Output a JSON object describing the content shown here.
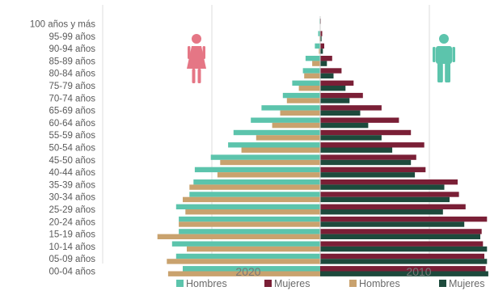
{
  "chart_data": {
    "type": "bar",
    "orientation": "horizontal",
    "layout": "population-pyramid",
    "categories": [
      "100 años y más",
      "95-99 años",
      "90-94 años",
      "85-89 años",
      "80-84 años",
      "75-79 años",
      "70-74 años",
      "65-69 años",
      "60-64 años",
      "55-59 años",
      "50-54 años",
      "45-50 años",
      "40-44 años",
      "35-39 años",
      "30-34 años",
      "25-29 años",
      "20-24 años",
      "15-19 años",
      "10-14 años",
      "05-09 años",
      "00-04 años"
    ],
    "series": [
      {
        "name": "Hombres",
        "year": "2020",
        "side": "left",
        "color": "#5cc4ac",
        "values": [
          0.05,
          0.15,
          0.4,
          1.1,
          1.3,
          2.1,
          2.8,
          4.4,
          5.2,
          6.5,
          6.9,
          8.2,
          9.4,
          9.5,
          9.8,
          10.8,
          10.6,
          10.6,
          11.1,
          10.8,
          10.3
        ]
      },
      {
        "name": "Mujeres",
        "year": "2020",
        "side": "right",
        "color": "#7a1f36",
        "values": [
          0.05,
          0.15,
          0.3,
          0.9,
          1.6,
          2.5,
          3.2,
          4.6,
          5.9,
          6.8,
          7.8,
          7.2,
          7.9,
          10.3,
          10.4,
          10.9,
          12.5,
          12.1,
          12.2,
          12.3,
          12.4
        ]
      },
      {
        "name": "Hombres",
        "year": "2010",
        "side": "left",
        "color": "#c9a26e",
        "values": [
          0.0,
          0.05,
          0.1,
          0.6,
          1.2,
          1.6,
          2.5,
          3.0,
          3.6,
          4.8,
          5.9,
          7.5,
          7.7,
          9.8,
          10.3,
          10.1,
          10.6,
          12.2,
          10.0,
          11.5,
          11.4
        ]
      },
      {
        "name": "Mujeres",
        "year": "2010",
        "side": "right",
        "color": "#1d4a3c",
        "values": [
          0.0,
          0.1,
          0.2,
          0.5,
          1.0,
          1.9,
          2.2,
          3.0,
          3.6,
          4.6,
          5.4,
          6.8,
          7.1,
          9.3,
          9.7,
          9.2,
          10.8,
          12.0,
          12.5,
          12.5,
          12.6
        ]
      }
    ],
    "year_labels": [
      "2020",
      "2010"
    ],
    "xlim": [
      -13,
      13
    ],
    "grid": true,
    "legend": "bottom"
  },
  "legend": [
    {
      "label": "Hombres",
      "color": "#5cc4ac"
    },
    {
      "label": "Mujeres",
      "color": "#7a1f36"
    },
    {
      "label": "Hombres",
      "color": "#c9a26e"
    },
    {
      "label": "Mujeres",
      "color": "#1d4a3c"
    }
  ],
  "icons": {
    "female": {
      "name": "female-figure-icon",
      "color": "#e57685"
    },
    "male": {
      "name": "male-figure-icon",
      "color": "#5cc4ac"
    }
  }
}
